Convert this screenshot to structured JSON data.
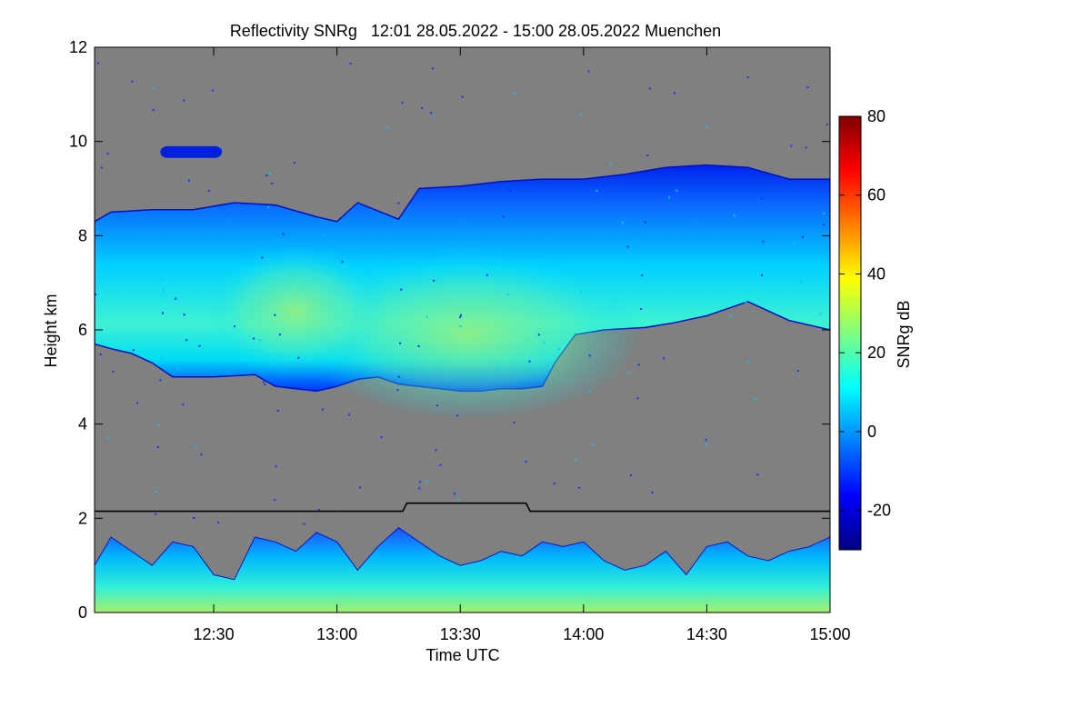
{
  "chart_data": {
    "type": "heatmap",
    "title": "Reflectivity SNRg   12:01 28.05.2022 - 15:00 28.05.2022 Muenchen",
    "xlabel": "Time UTC",
    "ylabel": "Height km",
    "xlim_minutes_utc": [
      721,
      900
    ],
    "ylim_km": [
      0,
      12
    ],
    "x_ticks": [
      {
        "minutes": 750,
        "label": "12:30"
      },
      {
        "minutes": 780,
        "label": "13:00"
      },
      {
        "minutes": 810,
        "label": "13:30"
      },
      {
        "minutes": 840,
        "label": "14:00"
      },
      {
        "minutes": 870,
        "label": "14:30"
      },
      {
        "minutes": 900,
        "label": "15:00"
      }
    ],
    "y_ticks": [
      0,
      2,
      4,
      6,
      8,
      10,
      12
    ],
    "background_color": "#808080",
    "colorbar": {
      "label": "SNRg dB",
      "range": [
        -30,
        80
      ],
      "ticks": [
        -20,
        0,
        20,
        40,
        60,
        80
      ],
      "colormap": "jet"
    },
    "cloud_layer": {
      "description": "cirrus",
      "top_km": [
        [
          721,
          8.3
        ],
        [
          725,
          8.5
        ],
        [
          735,
          8.55
        ],
        [
          745,
          8.55
        ],
        [
          755,
          8.7
        ],
        [
          765,
          8.65
        ],
        [
          775,
          8.4
        ],
        [
          780,
          8.3
        ],
        [
          785,
          8.7
        ],
        [
          795,
          8.35
        ],
        [
          800,
          9.0
        ],
        [
          810,
          9.05
        ],
        [
          820,
          9.15
        ],
        [
          830,
          9.2
        ],
        [
          840,
          9.2
        ],
        [
          850,
          9.3
        ],
        [
          860,
          9.45
        ],
        [
          870,
          9.5
        ],
        [
          880,
          9.45
        ],
        [
          890,
          9.2
        ],
        [
          900,
          9.2
        ]
      ],
      "bottom_km": [
        [
          721,
          5.7
        ],
        [
          725,
          5.6
        ],
        [
          730,
          5.5
        ],
        [
          735,
          5.3
        ],
        [
          740,
          5.0
        ],
        [
          750,
          5.0
        ],
        [
          760,
          5.05
        ],
        [
          765,
          4.8
        ],
        [
          770,
          4.75
        ],
        [
          775,
          4.7
        ],
        [
          780,
          4.8
        ],
        [
          785,
          4.95
        ],
        [
          790,
          5.0
        ],
        [
          795,
          4.85
        ],
        [
          800,
          4.8
        ],
        [
          805,
          4.75
        ],
        [
          810,
          4.7
        ],
        [
          815,
          4.7
        ],
        [
          820,
          4.75
        ],
        [
          825,
          4.75
        ],
        [
          830,
          4.8
        ],
        [
          833,
          5.3
        ],
        [
          838,
          5.9
        ],
        [
          845,
          6.0
        ],
        [
          855,
          6.05
        ],
        [
          862,
          6.15
        ],
        [
          870,
          6.3
        ],
        [
          880,
          6.6
        ],
        [
          890,
          6.2
        ],
        [
          900,
          6.0
        ]
      ],
      "core_snr_db": 25
    },
    "isolated_cloud": {
      "time_minutes": [
        737,
        752
      ],
      "height_km": [
        9.65,
        9.9
      ]
    },
    "boundary_layer_line": {
      "color": "#000000",
      "points": [
        [
          721,
          2.15
        ],
        [
          796,
          2.15
        ],
        [
          797,
          2.32
        ],
        [
          826,
          2.32
        ],
        [
          827,
          2.15
        ],
        [
          900,
          2.15
        ]
      ]
    },
    "boundary_layer_echo": {
      "top_km": [
        [
          721,
          1.0
        ],
        [
          725,
          1.6
        ],
        [
          730,
          1.3
        ],
        [
          735,
          1.0
        ],
        [
          740,
          1.5
        ],
        [
          745,
          1.4
        ],
        [
          750,
          0.8
        ],
        [
          755,
          0.7
        ],
        [
          760,
          1.6
        ],
        [
          765,
          1.5
        ],
        [
          770,
          1.3
        ],
        [
          775,
          1.7
        ],
        [
          780,
          1.5
        ],
        [
          785,
          0.9
        ],
        [
          790,
          1.4
        ],
        [
          795,
          1.8
        ],
        [
          800,
          1.5
        ],
        [
          805,
          1.2
        ],
        [
          810,
          1.0
        ],
        [
          815,
          1.1
        ],
        [
          820,
          1.3
        ],
        [
          825,
          1.2
        ],
        [
          830,
          1.5
        ],
        [
          835,
          1.4
        ],
        [
          840,
          1.5
        ],
        [
          845,
          1.1
        ],
        [
          850,
          0.9
        ],
        [
          855,
          1.0
        ],
        [
          860,
          1.3
        ],
        [
          865,
          0.8
        ],
        [
          870,
          1.4
        ],
        [
          875,
          1.5
        ],
        [
          880,
          1.2
        ],
        [
          885,
          1.1
        ],
        [
          890,
          1.3
        ],
        [
          895,
          1.4
        ],
        [
          900,
          1.6
        ]
      ],
      "core_snr_db": 20
    }
  }
}
